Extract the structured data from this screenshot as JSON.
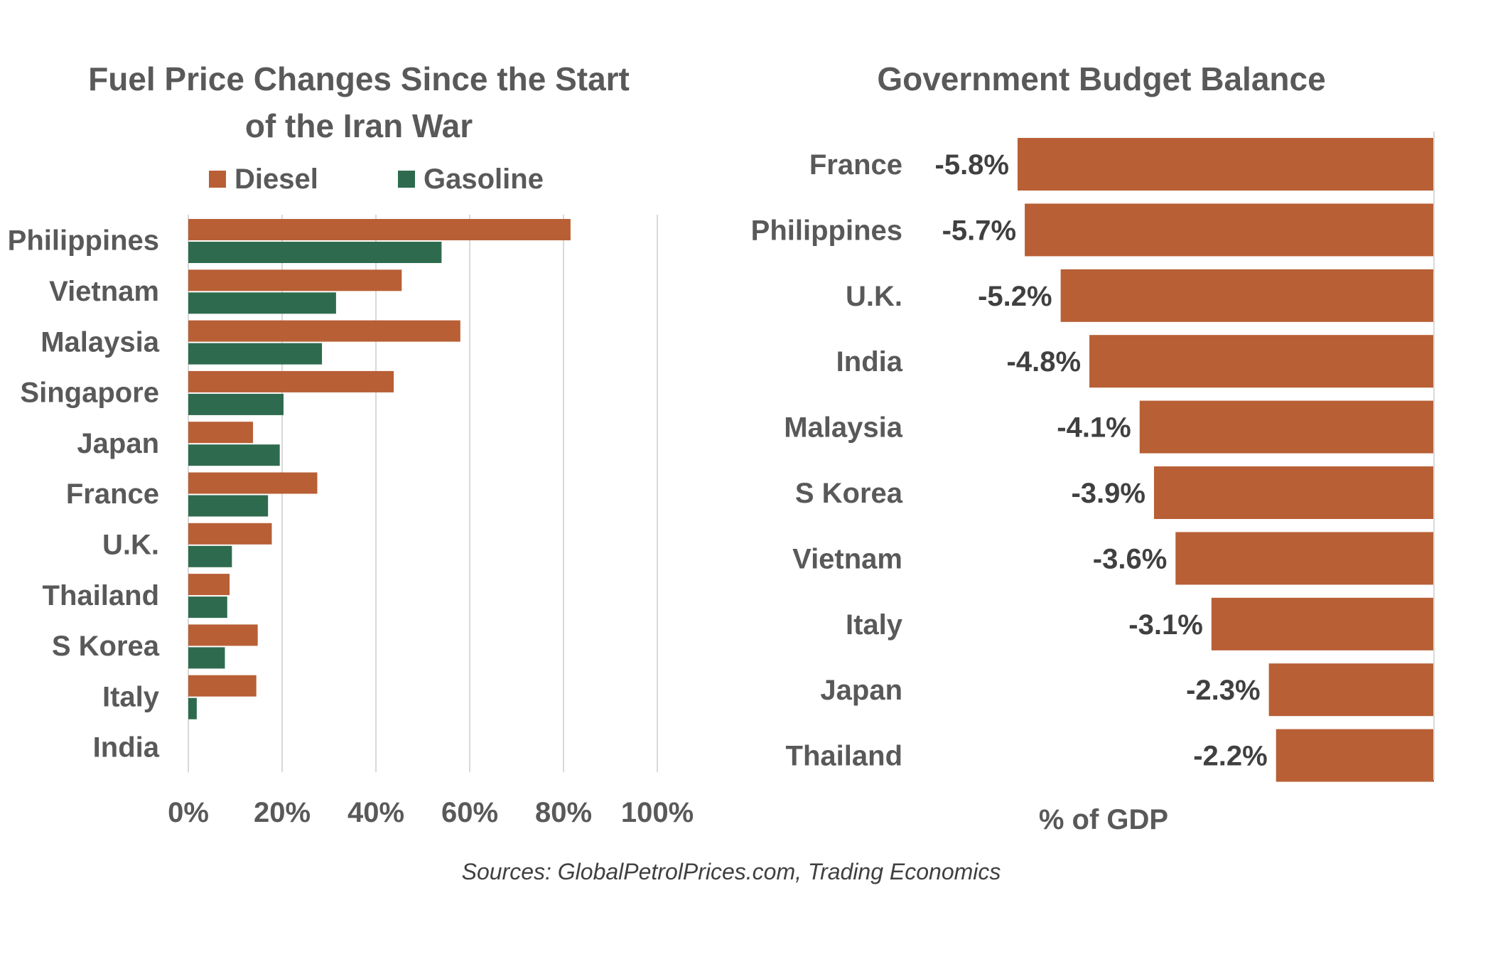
{
  "colors": {
    "diesel": "#B85F35",
    "gasoline": "#2E6B4E",
    "budget": "#B85F35",
    "grid": "#D9D9D9",
    "text": "#595959"
  },
  "source": "Sources: GlobalPetrolPrices.com, Trading Economics",
  "chart_data": [
    {
      "type": "bar",
      "orientation": "horizontal",
      "title_line1": "Fuel Price Changes Since the Start",
      "title_line2": "of the Iran War",
      "categories": [
        "Philippines",
        "Vietnam",
        "Malaysia",
        "Singapore",
        "Japan",
        "France",
        "U.K.",
        "Thailand",
        "S Korea",
        "Italy",
        "India"
      ],
      "series": [
        {
          "name": "Diesel",
          "values": [
            81.5,
            45.5,
            58,
            43.8,
            13.8,
            27.5,
            17.8,
            8.8,
            14.8,
            14.5,
            0
          ]
        },
        {
          "name": "Gasoline",
          "values": [
            54,
            31.5,
            28.5,
            20.3,
            19.5,
            17,
            9.3,
            8.3,
            7.8,
            1.8,
            0
          ]
        }
      ],
      "xlim": [
        0,
        100
      ],
      "xticks": [
        "0%",
        "20%",
        "40%",
        "60%",
        "80%",
        "100%"
      ],
      "legend_position": "top",
      "grid": true
    },
    {
      "type": "bar",
      "orientation": "horizontal",
      "title": "Government Budget Balance",
      "categories": [
        "France",
        "Philippines",
        "U.K.",
        "India",
        "Malaysia",
        "S Korea",
        "Vietnam",
        "Italy",
        "Japan",
        "Thailand"
      ],
      "values": [
        -5.8,
        -5.7,
        -5.2,
        -4.8,
        -4.1,
        -3.9,
        -3.6,
        -3.1,
        -2.3,
        -2.2
      ],
      "labels": [
        "-5.8%",
        "-5.7%",
        "-5.2%",
        "-4.8%",
        "-4.1%",
        "-3.9%",
        "-3.6%",
        "-3.1%",
        "-2.3%",
        "-2.2%"
      ],
      "xlabel": "% of GDP",
      "xlim": [
        -5.8,
        0
      ]
    }
  ]
}
